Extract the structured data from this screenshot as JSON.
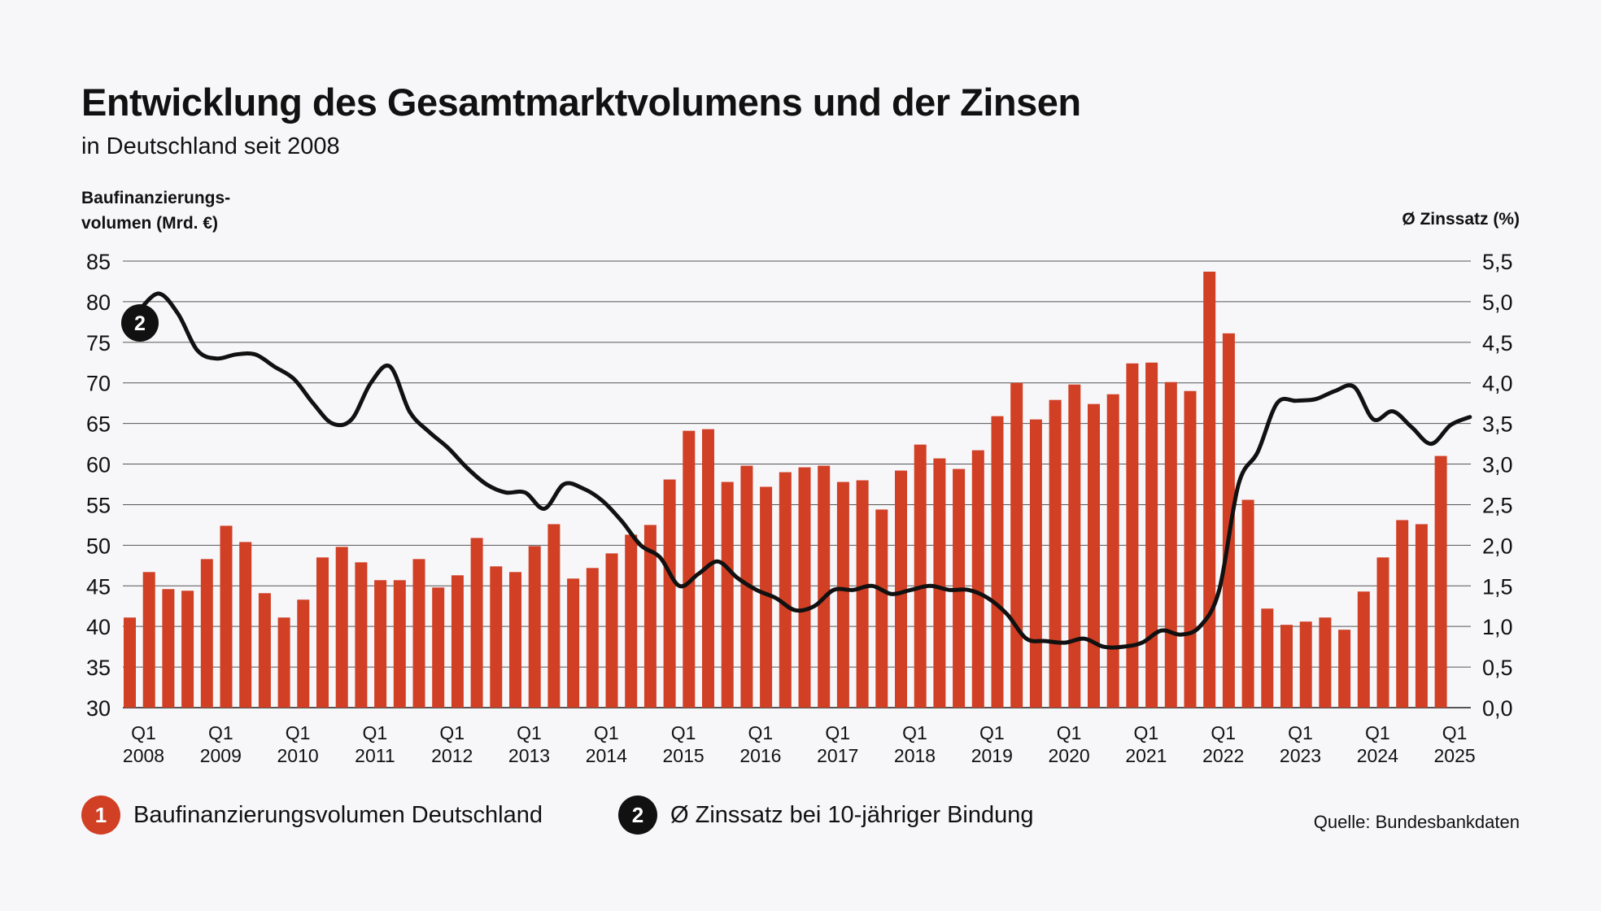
{
  "header": {
    "title": "Entwicklung des Gesamtmarktvolumens und der Zinsen",
    "subtitle": "in Deutschland seit 2008"
  },
  "axes": {
    "left_label_line1": "Baufinanzierungs-",
    "left_label_line2": "volumen (Mrd. €)",
    "right_label": "Ø Zinssatz (%)"
  },
  "legend": {
    "item1_number": "1",
    "item1_label": "Baufinanzierungsvolumen Deutschland",
    "item2_number": "2",
    "item2_label": "Ø Zinssatz bei 10-jähriger Bindung"
  },
  "source": "Quelle: Bundesbankdaten",
  "colors": {
    "bar": "#d13f25",
    "line": "#111111",
    "grid": "#555555"
  },
  "chart_data": {
    "type": "bar",
    "title": "Entwicklung des Gesamtmarktvolumens und der Zinsen",
    "subtitle": "in Deutschland seit 2008",
    "ylabel": "Baufinanzierungsvolumen (Mrd. €)",
    "y2label": "Ø Zinssatz (%)",
    "ylim": [
      30,
      85
    ],
    "y2lim": [
      0,
      5.5
    ],
    "yticks": [
      30,
      35,
      40,
      45,
      50,
      55,
      60,
      65,
      70,
      75,
      80,
      85
    ],
    "y2ticks": [
      "0,0",
      "0,5",
      "1,0",
      "1,5",
      "2,0",
      "2,5",
      "3,0",
      "3,5",
      "4,0",
      "4,5",
      "5,0",
      "5,5"
    ],
    "x_tick_labels": [
      {
        "q": "Q1",
        "year": "2008"
      },
      {
        "q": "Q1",
        "year": "2009"
      },
      {
        "q": "Q1",
        "year": "2010"
      },
      {
        "q": "Q1",
        "year": "2011"
      },
      {
        "q": "Q1",
        "year": "2012"
      },
      {
        "q": "Q1",
        "year": "2013"
      },
      {
        "q": "Q1",
        "year": "2014"
      },
      {
        "q": "Q1",
        "year": "2015"
      },
      {
        "q": "Q1",
        "year": "2016"
      },
      {
        "q": "Q1",
        "year": "2017"
      },
      {
        "q": "Q1",
        "year": "2018"
      },
      {
        "q": "Q1",
        "year": "2019"
      },
      {
        "q": "Q1",
        "year": "2020"
      },
      {
        "q": "Q1",
        "year": "2021"
      },
      {
        "q": "Q1",
        "year": "2022"
      },
      {
        "q": "Q1",
        "year": "2023"
      },
      {
        "q": "Q1",
        "year": "2024"
      },
      {
        "q": "Q1",
        "year": "2025"
      }
    ],
    "series": [
      {
        "name": "Baufinanzierungsvolumen Deutschland",
        "type": "bar",
        "axis": "left",
        "values": [
          41.1,
          46.7,
          44.6,
          44.4,
          48.3,
          52.4,
          50.4,
          44.1,
          41.1,
          43.3,
          48.5,
          49.8,
          47.9,
          45.7,
          45.7,
          48.3,
          44.8,
          46.3,
          50.9,
          47.4,
          46.7,
          49.9,
          52.6,
          45.9,
          47.2,
          49.0,
          51.3,
          52.5,
          58.1,
          64.1,
          64.3,
          57.8,
          59.8,
          57.2,
          59.0,
          59.6,
          59.8,
          57.8,
          58.0,
          54.4,
          59.2,
          62.4,
          60.7,
          59.4,
          61.7,
          65.9,
          70.0,
          65.5,
          67.9,
          69.8,
          67.4,
          68.6,
          72.4,
          72.5,
          70.1,
          69.0,
          83.7,
          76.1,
          55.6,
          42.2,
          40.2,
          40.6,
          41.1,
          39.6,
          44.3,
          48.5,
          53.1,
          52.6,
          61.0
        ]
      },
      {
        "name": "Ø Zinssatz bei 10-jähriger Bindung",
        "type": "line",
        "axis": "right",
        "badge": "2",
        "values": [
          4.9,
          5.1,
          4.85,
          4.4,
          4.3,
          4.35,
          4.35,
          4.2,
          4.05,
          3.75,
          3.5,
          3.55,
          4.0,
          4.2,
          3.65,
          3.4,
          3.2,
          2.95,
          2.75,
          2.65,
          2.65,
          2.45,
          2.75,
          2.7,
          2.55,
          2.3,
          2.0,
          1.85,
          1.5,
          1.65,
          1.8,
          1.6,
          1.45,
          1.35,
          1.2,
          1.25,
          1.45,
          1.45,
          1.5,
          1.4,
          1.45,
          1.5,
          1.45,
          1.45,
          1.35,
          1.15,
          0.85,
          0.82,
          0.8,
          0.85,
          0.75,
          0.75,
          0.8,
          0.95,
          0.9,
          1.0,
          1.45,
          2.75,
          3.15,
          3.75,
          3.78,
          3.8,
          3.9,
          3.95,
          3.55,
          3.65,
          3.45,
          3.25,
          3.48,
          3.58
        ]
      }
    ]
  }
}
